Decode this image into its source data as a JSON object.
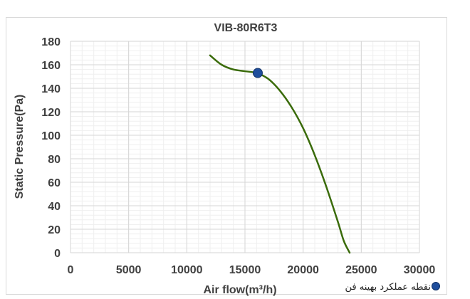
{
  "chart_data": {
    "type": "line",
    "title": "VIB-80R6T3",
    "xlabel": "Air flow(m³/h)",
    "ylabel": "Static Pressure(Pa)",
    "xlim": [
      0,
      30000
    ],
    "ylim": [
      0,
      180
    ],
    "xticks": [
      "0",
      "5000",
      "10000",
      "15000",
      "20000",
      "25000",
      "30000"
    ],
    "yticks": [
      "0",
      "20",
      "40",
      "60",
      "80",
      "100",
      "120",
      "140",
      "160",
      "180"
    ],
    "grid": true,
    "legend_position": "bottom-right",
    "series": [
      {
        "color": "#3a6b0a",
        "x": [
          12000,
          13000,
          14000,
          15000,
          16000,
          17000,
          18000,
          19000,
          20000,
          21000,
          22000,
          23000,
          23500,
          24000
        ],
        "y": [
          168,
          160,
          156,
          154.5,
          153,
          148,
          138,
          124,
          106,
          83,
          56,
          26,
          10,
          0
        ]
      }
    ],
    "marker_points": [
      {
        "label": "نقطه عملکرد بهینه فن",
        "x": 16100,
        "y": 153,
        "color": "#1f4e9c"
      }
    ]
  }
}
